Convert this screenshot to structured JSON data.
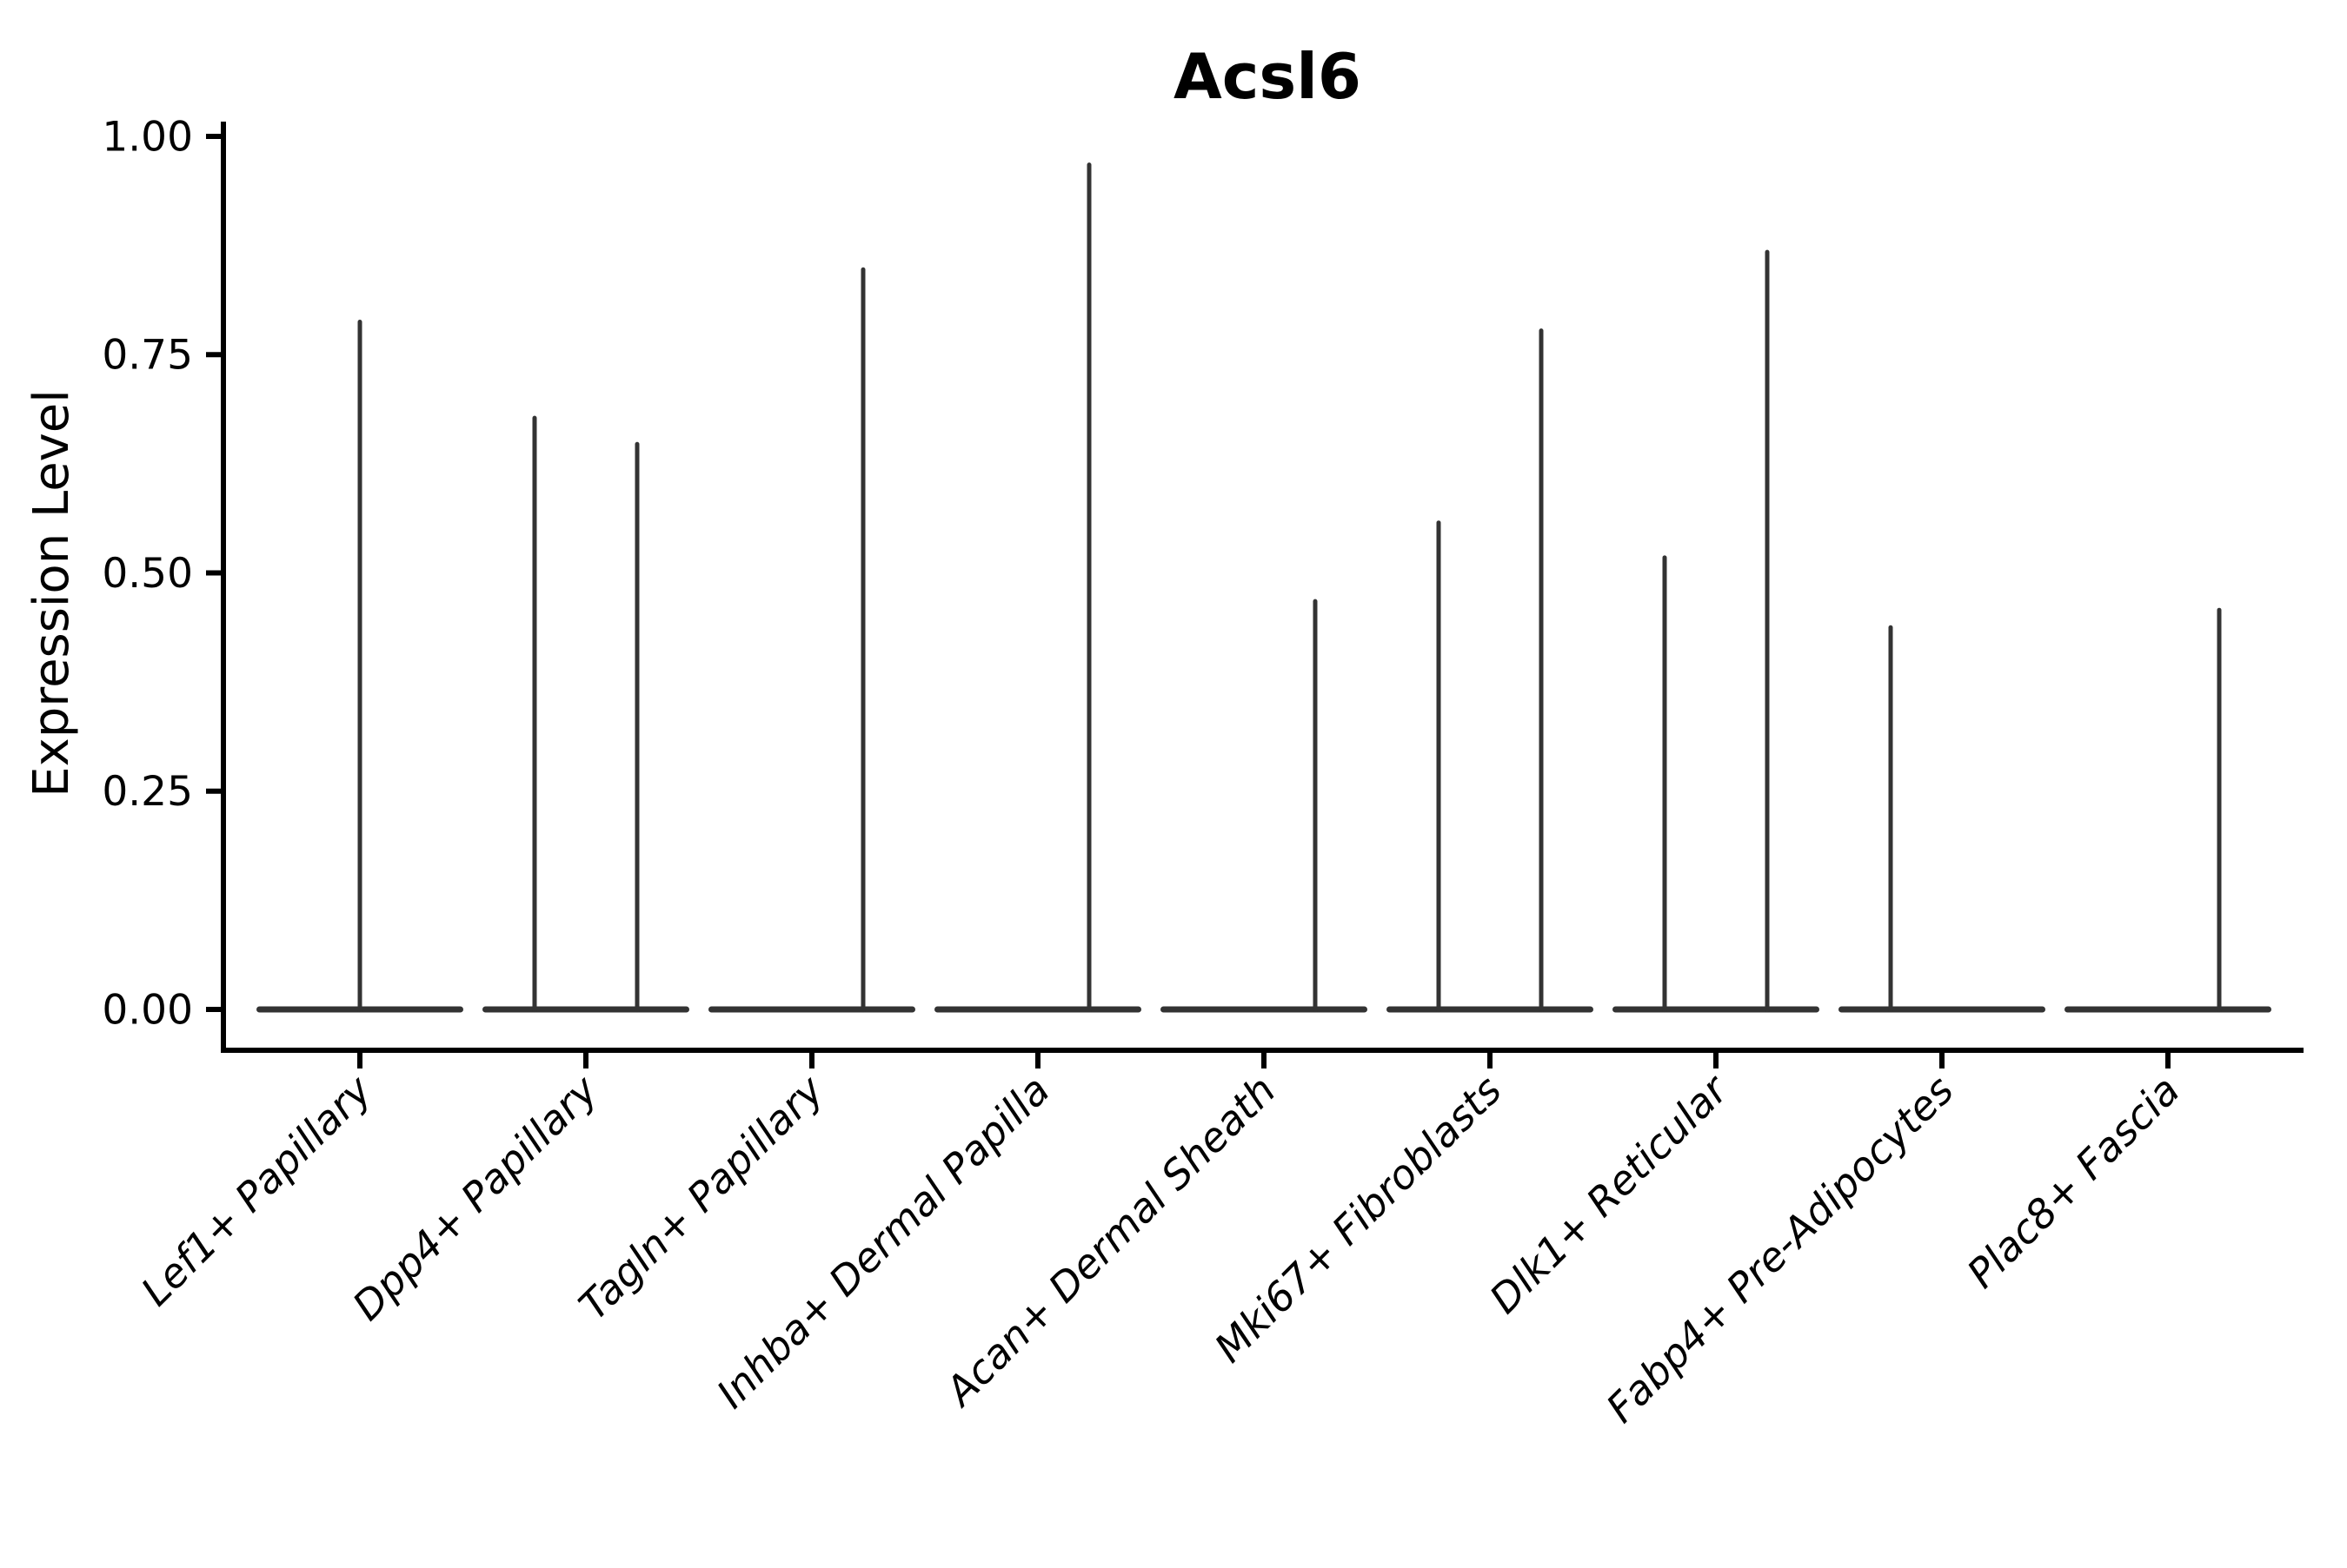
{
  "figure": {
    "title": "Acsl6",
    "background": "#ffffff",
    "colors": {
      "violin": "#333333",
      "axis": "#000000",
      "text": "#000000"
    }
  },
  "chart_data": {
    "type": "violin",
    "title": "Acsl6",
    "xlabel": "",
    "ylabel": "Expression Level",
    "ylim": [
      0,
      1
    ],
    "yticks": [
      0,
      0.25,
      0.5,
      0.75,
      1.0
    ],
    "ytick_labels": [
      "0.00",
      "0.25",
      "0.50",
      "0.75",
      "1.00"
    ],
    "grid": false,
    "legend_position": "none",
    "categories": [
      "Lef1+ Papillary",
      "Dpp4+ Papillary",
      "Tagln+ Papillary",
      "Inhba+ Dermal Papilla",
      "Acan+ Dermal Sheath",
      "Mki67+ Fibroblasts",
      "Dlk1+ Reticular",
      "Fabp4+ Pre-Adipocytes",
      "Plac8+ Fascia"
    ],
    "baseline_value": 0.0,
    "violins": [
      {
        "category": "Lef1+ Papillary",
        "spikes": [
          {
            "side": "center",
            "max": 0.79
          }
        ]
      },
      {
        "category": "Dpp4+ Papillary",
        "spikes": [
          {
            "side": "left",
            "max": 0.68
          },
          {
            "side": "right",
            "max": 0.65
          }
        ]
      },
      {
        "category": "Tagln+ Papillary",
        "spikes": [
          {
            "side": "right",
            "max": 0.85
          }
        ]
      },
      {
        "category": "Inhba+ Dermal Papilla",
        "spikes": [
          {
            "side": "right",
            "max": 0.97
          }
        ]
      },
      {
        "category": "Acan+ Dermal Sheath",
        "spikes": [
          {
            "side": "right",
            "max": 0.47
          }
        ]
      },
      {
        "category": "Mki67+ Fibroblasts",
        "spikes": [
          {
            "side": "left",
            "max": 0.56
          },
          {
            "side": "right",
            "max": 0.78
          }
        ]
      },
      {
        "category": "Dlk1+ Reticular",
        "spikes": [
          {
            "side": "left",
            "max": 0.52
          },
          {
            "side": "right",
            "max": 0.87
          }
        ]
      },
      {
        "category": "Fabp4+ Pre-Adipocytes",
        "spikes": [
          {
            "side": "left",
            "max": 0.44
          }
        ]
      },
      {
        "category": "Plac8+ Fascia",
        "spikes": [
          {
            "side": "right",
            "max": 0.46
          }
        ]
      }
    ]
  }
}
